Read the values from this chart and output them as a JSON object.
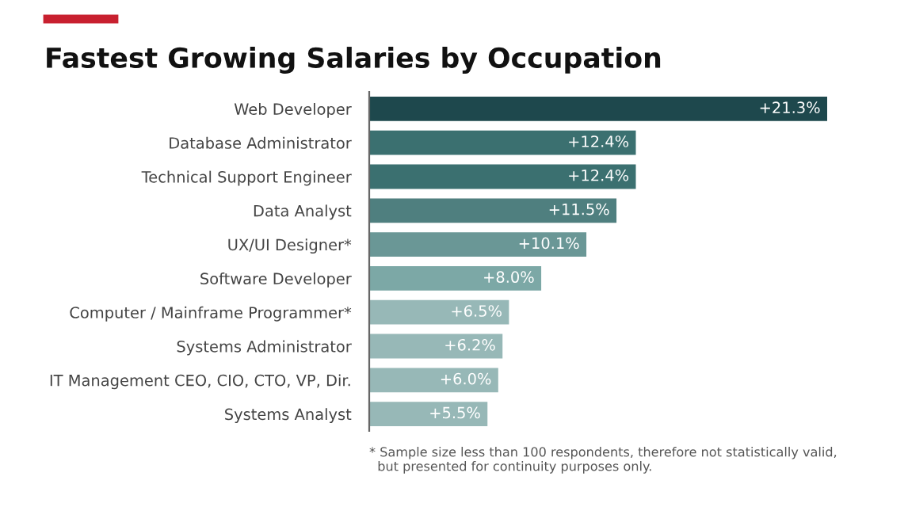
{
  "chart_data": {
    "type": "bar",
    "orientation": "horizontal",
    "title": "Fastest Growing Salaries by Occupation",
    "categories": [
      "Web Developer",
      "Database Administrator",
      "Technical Support Engineer",
      "Data Analyst",
      "UX/UI Designer*",
      "Software Developer",
      "Computer / Mainframe Programmer*",
      "Systems Administrator",
      "IT Management CEO, CIO, CTO, VP, Dir.",
      "Systems Analyst"
    ],
    "values": [
      21.3,
      12.4,
      12.4,
      11.5,
      10.1,
      8.0,
      6.5,
      6.2,
      6.0,
      5.5
    ],
    "value_labels": [
      "+21.3%",
      "+12.4%",
      "+12.4%",
      "+11.5%",
      "+10.1%",
      "+8.0%",
      "+6.5%",
      "+6.2%",
      "+6.0%",
      "+5.5%"
    ],
    "colors": [
      "#1e484d",
      "#3b7070",
      "#3b7070",
      "#4f7f7f",
      "#6a9796",
      "#7ca8a6",
      "#97b8b7",
      "#97b8b7",
      "#97b8b7",
      "#97b8b7"
    ],
    "annotations": [
      "* Sample size less than 100 respondents, therefore not statistically valid,\n  but presented for continuity purposes only."
    ],
    "grid": false,
    "legend": false
  }
}
